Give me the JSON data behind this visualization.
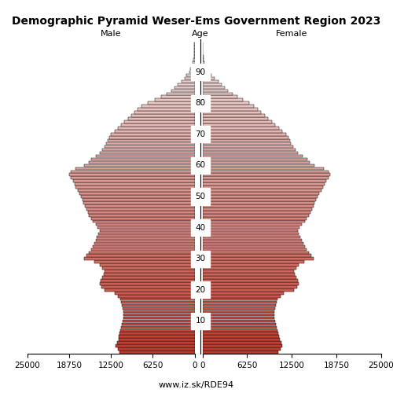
{
  "title": "Demographic Pyramid Weser-Ems Government Region 2023",
  "male_label": "Male",
  "female_label": "Female",
  "age_label": "Age",
  "source": "www.iz.sk/RDE94",
  "xlim": 25000,
  "age_groups": [
    0,
    1,
    2,
    3,
    4,
    5,
    6,
    7,
    8,
    9,
    10,
    11,
    12,
    13,
    14,
    15,
    16,
    17,
    18,
    19,
    20,
    21,
    22,
    23,
    24,
    25,
    26,
    27,
    28,
    29,
    30,
    31,
    32,
    33,
    34,
    35,
    36,
    37,
    38,
    39,
    40,
    41,
    42,
    43,
    44,
    45,
    46,
    47,
    48,
    49,
    50,
    51,
    52,
    53,
    54,
    55,
    56,
    57,
    58,
    59,
    60,
    61,
    62,
    63,
    64,
    65,
    66,
    67,
    68,
    69,
    70,
    71,
    72,
    73,
    74,
    75,
    76,
    77,
    78,
    79,
    80,
    81,
    82,
    83,
    84,
    85,
    86,
    87,
    88,
    89,
    90,
    91,
    92,
    93,
    94,
    95,
    96,
    97,
    98,
    99
  ],
  "male": [
    11200,
    11500,
    11800,
    11600,
    11400,
    11300,
    11200,
    11100,
    11000,
    10900,
    10800,
    10700,
    10600,
    10700,
    10800,
    10900,
    11000,
    11100,
    11500,
    12000,
    13500,
    14000,
    14200,
    14100,
    13800,
    13600,
    13500,
    13800,
    14200,
    15000,
    16500,
    16200,
    15800,
    15500,
    15200,
    15000,
    14800,
    14600,
    14400,
    14200,
    14500,
    14800,
    15200,
    15500,
    15800,
    16000,
    16200,
    16400,
    16600,
    16800,
    17000,
    17200,
    17500,
    17800,
    18000,
    18200,
    18500,
    18800,
    18500,
    17800,
    16500,
    15800,
    15500,
    14800,
    14200,
    13800,
    13500,
    13200,
    13000,
    12800,
    12500,
    12000,
    11500,
    11000,
    10500,
    10000,
    9500,
    9000,
    8500,
    8000,
    7000,
    6000,
    5000,
    4200,
    3500,
    3000,
    2500,
    2000,
    1500,
    1200,
    800,
    600,
    400,
    250,
    150,
    80,
    40,
    20,
    10,
    5
  ],
  "female": [
    10600,
    10900,
    11200,
    11000,
    10800,
    10700,
    10600,
    10500,
    10400,
    10300,
    10200,
    10100,
    10000,
    10100,
    10200,
    10300,
    10400,
    10500,
    10900,
    11400,
    12800,
    13200,
    13500,
    13400,
    13100,
    12900,
    12800,
    13100,
    13500,
    14200,
    15500,
    15200,
    14900,
    14600,
    14300,
    14100,
    13900,
    13700,
    13500,
    13300,
    13600,
    13900,
    14300,
    14600,
    14900,
    15100,
    15300,
    15500,
    15700,
    15900,
    16100,
    16300,
    16600,
    16900,
    17100,
    17300,
    17600,
    17900,
    17600,
    17000,
    15700,
    15000,
    14700,
    14000,
    13400,
    13000,
    12700,
    12400,
    12200,
    12000,
    11700,
    11200,
    10700,
    10200,
    9700,
    9200,
    8700,
    8200,
    7700,
    7200,
    6500,
    5700,
    4900,
    4200,
    3600,
    3100,
    2700,
    2200,
    1700,
    1300,
    900,
    700,
    500,
    320,
    200,
    110,
    60,
    30,
    15,
    7
  ],
  "bar_color_young": "#c0392b",
  "bar_color_old": "#f5e6e6",
  "bar_edge_color": "#111111",
  "ytick_ages": [
    10,
    20,
    30,
    40,
    50,
    60,
    70,
    80,
    90
  ],
  "xtick_vals": [
    25000,
    18750,
    12500,
    6250,
    0
  ],
  "title_fontsize": 10,
  "label_fontsize": 8,
  "tick_fontsize": 7.5,
  "source_fontsize": 8
}
